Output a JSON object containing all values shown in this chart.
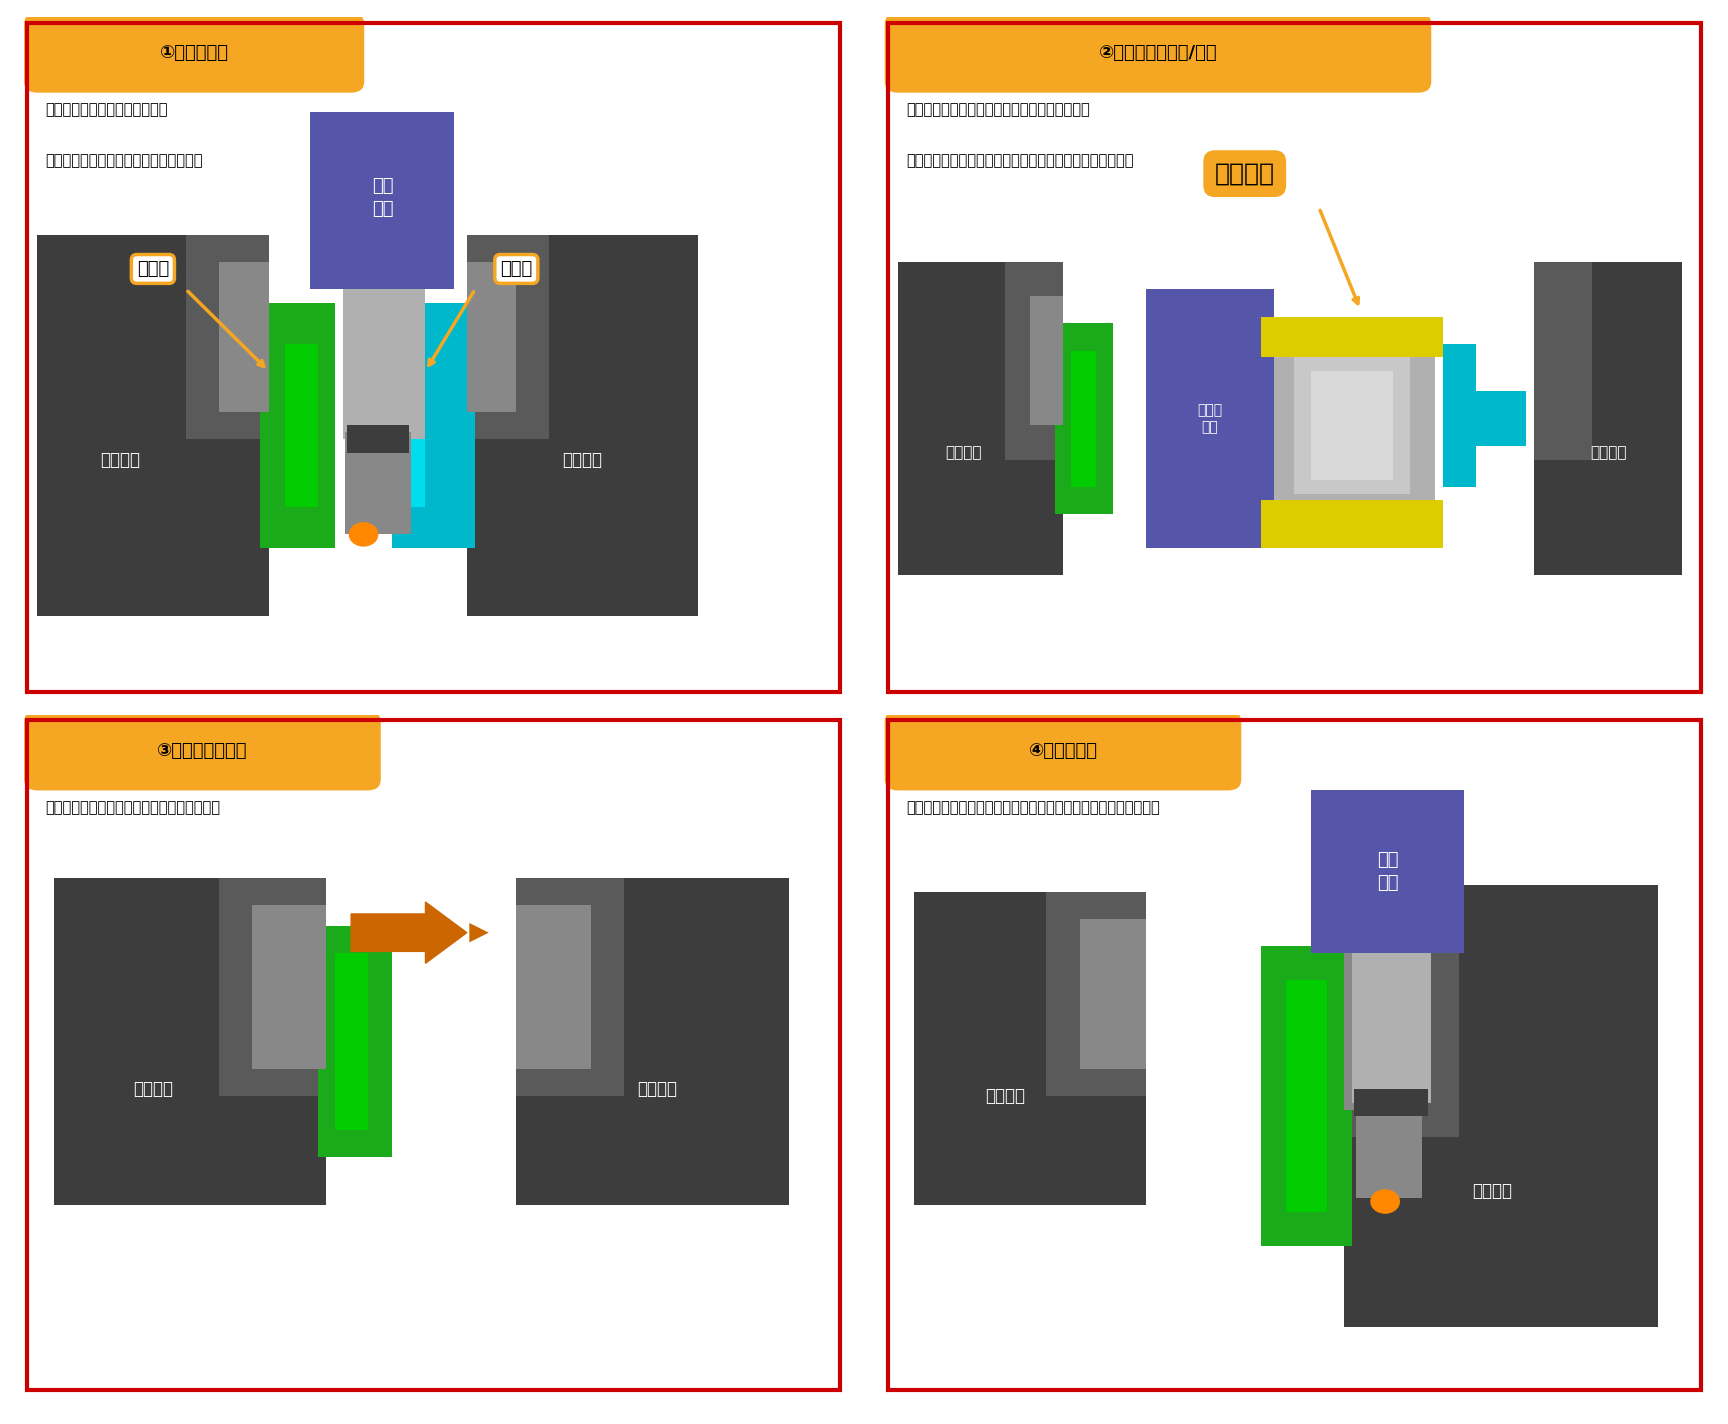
{
  "bg_color": "#ffffff",
  "border_color": "#cc0000",
  "tag_bg_color": "#f5a623",
  "panels": [
    {
      "id": 1,
      "tag": "①ワーク加工",
      "bullets": [
        "・第一主軸でワークをクランプ",
        "・第二主軸にセンタを取付ワーク押さえ"
      ],
      "label_work": "ワーク",
      "label_center": "センタ",
      "label_spindle1": "第一主軸",
      "label_spindle2": "第二主軸",
      "label_tool": "工具\n主軸"
    },
    {
      "id": 2,
      "tag": "②センタ取り外し/搬送",
      "bullets": [
        "・加工工具をマテハンホルダにツールチェンジ",
        "・第二主軸よりセンタを取り外し、ツールマガジンに収納"
      ],
      "label_matehan": "マテハン",
      "label_spindle1": "第一主軸",
      "label_spindle2": "第二主軸",
      "label_machine": "加工機\n主軸"
    },
    {
      "id": 3,
      "tag": "③ワーク持ち替え",
      "bullets": [
        "・第一主軸から第二主軸へワークの受け渡し"
      ],
      "label_spindle1": "第一主軸",
      "label_spindle2": "第二主軸"
    },
    {
      "id": 4,
      "tag": "④反対面加工",
      "bullets": [
        "・第一主軸で加工した面を、第二主軸でクランプし反対面を加工"
      ],
      "label_spindle1": "第一主軸",
      "label_spindle2": "第二主軸",
      "label_tool": "工具\n主軸"
    }
  ],
  "colors": {
    "gray_dark": "#3d3d3d",
    "gray_mid": "#5a5a5a",
    "gray_light": "#888888",
    "gray_lighter": "#aaaaaa",
    "green": "#1aaa1a",
    "cyan": "#00b8cc",
    "purple": "#5555aa",
    "yellow": "#ccbb00",
    "silver": "#b0b0b0",
    "orange_arrow": "#cc6600"
  }
}
